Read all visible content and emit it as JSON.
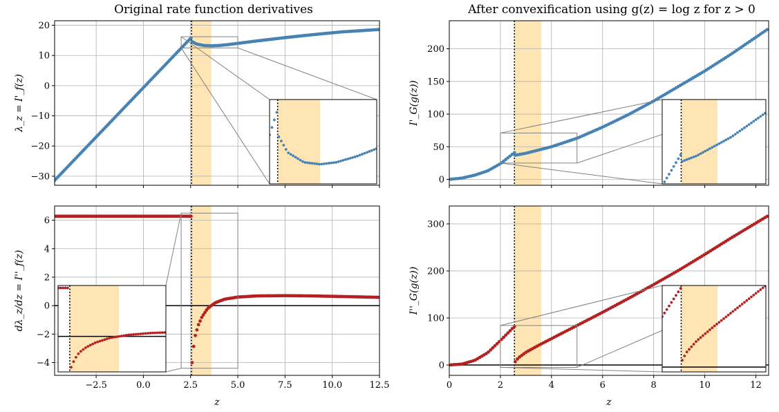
{
  "colors": {
    "blue": "#4682b4",
    "red": "#b22222",
    "band": "#ffe5b4",
    "grid": "#b0b0b0",
    "zoom_box": "#808080"
  },
  "titles": {
    "left": "Original rate function derivatives",
    "right": "After convexification using g(z) = log z for z > 0"
  },
  "vline_z": 2.55,
  "band_z": [
    2.55,
    3.6
  ],
  "chart_data": [
    {
      "id": "top-left",
      "type": "scatter",
      "series_color": "blue",
      "ylabel": "λ_z = I'_f(z)",
      "xlabel": "",
      "xlim": [
        -4.7,
        12.5
      ],
      "ylim": [
        -33,
        21.5
      ],
      "xticks": [
        -2.5,
        0,
        2.5,
        5,
        7.5,
        10,
        12.5
      ],
      "xtick_labels": [],
      "yticks": [
        -30,
        -20,
        -10,
        0,
        10,
        20
      ],
      "ytick_labels": [
        "−30",
        "−20",
        "−10",
        "0",
        "10",
        "20"
      ],
      "grid": true,
      "zero_line": false,
      "series": [
        {
          "segments": [
            {
              "x": [
                -4.7,
                2.55
              ],
              "y": [
                -31.4,
                16.0
              ],
              "shape": "linear"
            },
            {
              "x": [
                2.58,
                2.8,
                3.2,
                3.6,
                4.0,
                4.5,
                5.0,
                6.0,
                7.5,
                9.0,
                10.5,
                12.5
              ],
              "y": [
                14.6,
                13.8,
                13.3,
                13.2,
                13.3,
                13.6,
                14.0,
                14.8,
                15.9,
                16.9,
                17.8,
                18.6
              ],
              "shape": "curve"
            }
          ]
        }
      ],
      "zoom_box_data": [
        2.0,
        5.0,
        12.5,
        16.2
      ]
    },
    {
      "id": "bottom-left",
      "type": "scatter",
      "series_color": "red",
      "ylabel": "dλ_z/dz = I''_f(z)",
      "xlabel": "z",
      "xlim": [
        -4.7,
        12.5
      ],
      "ylim": [
        -4.9,
        7.0
      ],
      "xticks": [
        -2.5,
        0,
        2.5,
        5,
        7.5,
        10,
        12.5
      ],
      "xtick_labels": [
        "−2.5",
        "0.0",
        "2.5",
        "5.0",
        "7.5",
        "10.0",
        "12.5"
      ],
      "yticks": [
        -4,
        -2,
        0,
        2,
        4,
        6
      ],
      "ytick_labels": [
        "−4",
        "−2",
        "0",
        "2",
        "4",
        "6"
      ],
      "grid": true,
      "zero_line": true,
      "series": [
        {
          "segments": [
            {
              "x": [
                -4.7,
                2.55
              ],
              "y": [
                6.28,
                6.28
              ],
              "shape": "linear"
            },
            {
              "x": [
                2.58,
                2.65,
                2.75,
                2.9,
                3.1,
                3.4,
                3.8,
                4.3,
                5.0,
                6.0,
                7.5,
                9.0,
                10.5,
                12.5
              ],
              "y": [
                -4.0,
                -3.0,
                -2.1,
                -1.4,
                -0.8,
                -0.2,
                0.2,
                0.45,
                0.6,
                0.68,
                0.7,
                0.68,
                0.64,
                0.58
              ],
              "shape": "curve"
            }
          ]
        }
      ],
      "zoom_box_data": [
        2.0,
        5.0,
        -4.4,
        6.5
      ]
    },
    {
      "id": "top-right",
      "type": "scatter",
      "series_color": "blue",
      "ylabel": "I'_G(g(z))",
      "xlabel": "",
      "xlim": [
        0,
        12.5
      ],
      "ylim": [
        -9,
        243
      ],
      "xticks": [
        0,
        2,
        4,
        6,
        8,
        10,
        12
      ],
      "xtick_labels": [],
      "yticks": [
        0,
        50,
        100,
        150,
        200
      ],
      "ytick_labels": [
        "0",
        "50",
        "100",
        "150",
        "200"
      ],
      "grid": true,
      "zero_line": false,
      "series": [
        {
          "segments": [
            {
              "x": [
                0,
                0.5,
                1.0,
                1.5,
                2.0,
                2.55
              ],
              "y": [
                0,
                2.0,
                6.5,
                13,
                24,
                41
              ],
              "shape": "curve"
            },
            {
              "x": [
                2.58,
                3.0,
                3.5,
                4.0,
                5.0,
                6.0,
                7.0,
                8.0,
                9.0,
                10.0,
                11.0,
                12.5
              ],
              "y": [
                37,
                40,
                45,
                50,
                63,
                80,
                99,
                120,
                143,
                166,
                191,
                231
              ],
              "shape": "curve"
            }
          ]
        }
      ],
      "zoom_box_data": [
        2.0,
        5.0,
        25,
        71
      ]
    },
    {
      "id": "bottom-right",
      "type": "scatter",
      "series_color": "red",
      "ylabel": "I''_G(g(z))",
      "xlabel": "z",
      "xlim": [
        0,
        12.5
      ],
      "ylim": [
        -22,
        338
      ],
      "xticks": [
        0,
        2,
        4,
        6,
        8,
        10,
        12
      ],
      "xtick_labels": [
        "0",
        "2",
        "4",
        "6",
        "8",
        "10",
        "12"
      ],
      "yticks": [
        0,
        100,
        200,
        300
      ],
      "ytick_labels": [
        "0",
        "100",
        "200",
        "300"
      ],
      "grid": true,
      "zero_line": true,
      "series": [
        {
          "segments": [
            {
              "x": [
                0,
                0.5,
                1.0,
                1.5,
                2.0,
                2.55
              ],
              "y": [
                0,
                2,
                10,
                26,
                52,
                82
              ],
              "shape": "curve"
            },
            {
              "x": [
                2.58,
                2.7,
                3.0,
                3.5,
                4.0,
                5.0,
                6.0,
                7.0,
                8.0,
                9.0,
                10.0,
                11.0,
                12.5
              ],
              "y": [
                7,
                15,
                27,
                42,
                56,
                84,
                112,
                141,
                171,
                202,
                235,
                269,
                318
              ],
              "shape": "curve"
            }
          ]
        }
      ],
      "zoom_box_data": [
        2.0,
        5.0,
        -5,
        84
      ]
    }
  ]
}
